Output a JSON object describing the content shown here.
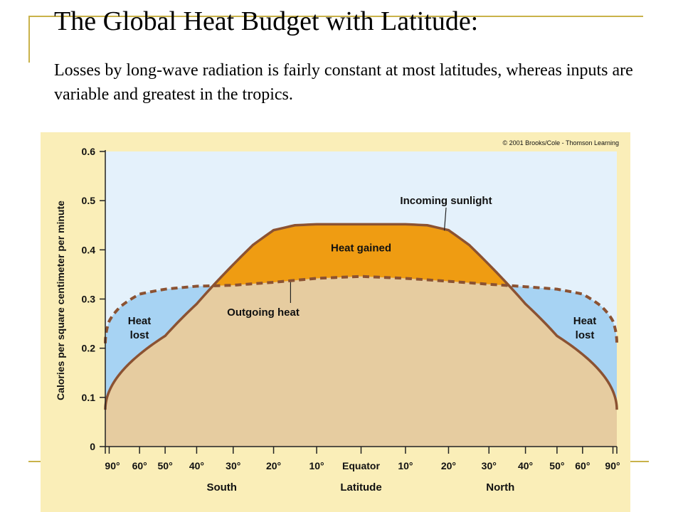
{
  "slide": {
    "title": "The Global Heat Budget with Latitude:",
    "body": "Losses by long-wave radiation is fairly constant at most latitudes, whereas inputs are variable and greatest in the tropics."
  },
  "colors": {
    "accent_line": "#c9b24a",
    "panel_bg": "#faeeb8",
    "plot_bg": "#e4f1fb",
    "heat_lost_fill": "#a7d3f3",
    "heat_gained_fill": "#ef9c12",
    "base_fill": "#e6cca0",
    "incoming_line": "#8b5232",
    "outgoing_line": "#8b5232"
  },
  "chart_data": {
    "type": "area",
    "copyright": "© 2001 Brooks/Cole - Thomson Learning",
    "ylabel": "Calories per square centimeter per minute",
    "xlabel": "Latitude",
    "x_side_labels": {
      "left": "South",
      "right": "North"
    },
    "ylim": [
      0,
      0.6
    ],
    "yticks": [
      0,
      0.1,
      0.2,
      0.3,
      0.4,
      0.5,
      0.6
    ],
    "ytick_labels": [
      "0",
      "0.1",
      "0.2",
      "0.3",
      "0.4",
      "0.5",
      "0.6"
    ],
    "x_axis": "sine of latitude, South negative, North positive",
    "xlim": [
      -90,
      90
    ],
    "xticks": [
      -90,
      -80,
      -60,
      -50,
      -40,
      -30,
      -20,
      -10,
      0,
      10,
      20,
      30,
      40,
      50,
      60,
      80,
      90
    ],
    "xtick_labels": [
      {
        "lat": -90,
        "text": "90°"
      },
      {
        "lat": -60,
        "text": "60°"
      },
      {
        "lat": -50,
        "text": "50°"
      },
      {
        "lat": -40,
        "text": "40°"
      },
      {
        "lat": -30,
        "text": "30°"
      },
      {
        "lat": -20,
        "text": "20°"
      },
      {
        "lat": -10,
        "text": "10°"
      },
      {
        "lat": 0,
        "text": "Equator"
      },
      {
        "lat": 10,
        "text": "10°"
      },
      {
        "lat": 20,
        "text": "20°"
      },
      {
        "lat": 30,
        "text": "30°"
      },
      {
        "lat": 40,
        "text": "40°"
      },
      {
        "lat": 50,
        "text": "50°"
      },
      {
        "lat": 60,
        "text": "60°"
      },
      {
        "lat": 90,
        "text": "90°"
      }
    ],
    "series": [
      {
        "name": "Incoming sunlight",
        "style": "solid",
        "points": [
          [
            -90,
            0.075
          ],
          [
            -50,
            0.225
          ],
          [
            -40,
            0.29
          ],
          [
            -30,
            0.37
          ],
          [
            -25,
            0.41
          ],
          [
            -20,
            0.44
          ],
          [
            -15,
            0.45
          ],
          [
            -10,
            0.452
          ],
          [
            0,
            0.452
          ],
          [
            10,
            0.452
          ],
          [
            15,
            0.45
          ],
          [
            20,
            0.44
          ],
          [
            25,
            0.41
          ],
          [
            30,
            0.37
          ],
          [
            40,
            0.29
          ],
          [
            50,
            0.225
          ],
          [
            90,
            0.075
          ]
        ]
      },
      {
        "name": "Outgoing heat",
        "style": "dashed",
        "points": [
          [
            -90,
            0.21
          ],
          [
            -80,
            0.255
          ],
          [
            -70,
            0.285
          ],
          [
            -60,
            0.31
          ],
          [
            -50,
            0.32
          ],
          [
            -40,
            0.326
          ],
          [
            -30,
            0.328
          ],
          [
            -20,
            0.334
          ],
          [
            -10,
            0.342
          ],
          [
            0,
            0.346
          ],
          [
            10,
            0.342
          ],
          [
            20,
            0.336
          ],
          [
            30,
            0.33
          ],
          [
            40,
            0.325
          ],
          [
            50,
            0.32
          ],
          [
            60,
            0.31
          ],
          [
            70,
            0.285
          ],
          [
            80,
            0.255
          ],
          [
            90,
            0.21
          ]
        ]
      }
    ],
    "annotations": [
      {
        "text": "Heat gained",
        "lat": 0,
        "value": 0.397
      },
      {
        "text": "Heat lost",
        "lat": -70,
        "value": 0.22
      },
      {
        "text": "Heat lost",
        "lat": 74,
        "value": 0.22
      }
    ]
  }
}
